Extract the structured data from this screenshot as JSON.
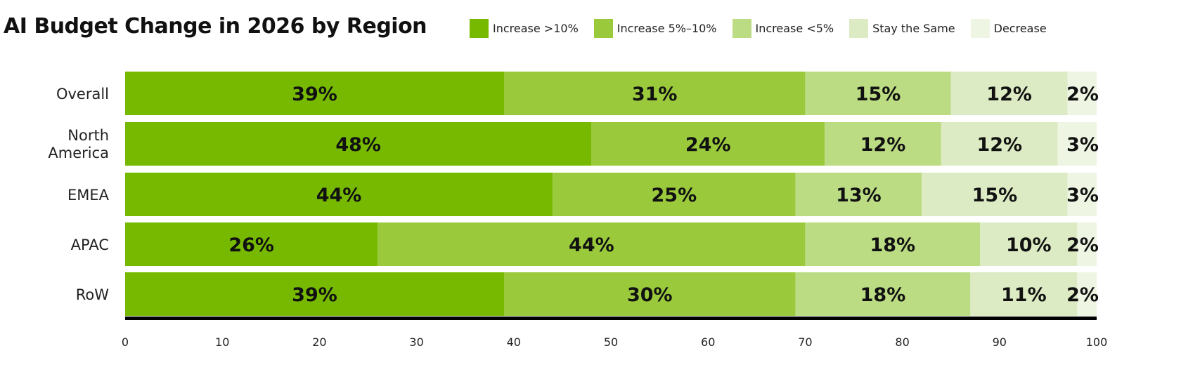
{
  "chart_data": {
    "type": "bar",
    "orientation": "horizontal",
    "stacked": true,
    "title": "AI Budget Change in 2026 by Region",
    "categories": [
      "Overall",
      "North America",
      "EMEA",
      "APAC",
      "RoW"
    ],
    "series": [
      {
        "name": "Increase >10%",
        "color": "#76b900",
        "values": [
          39,
          48,
          44,
          26,
          39
        ]
      },
      {
        "name": "Increase 5%–10%",
        "color": "#9aca3c",
        "values": [
          31,
          24,
          25,
          44,
          30
        ]
      },
      {
        "name": "Increase <5%",
        "color": "#bcdc84",
        "values": [
          15,
          12,
          13,
          18,
          18
        ]
      },
      {
        "name": "Stay the Same",
        "color": "#dcebc3",
        "values": [
          12,
          12,
          15,
          10,
          11
        ]
      },
      {
        "name": "Decrease",
        "color": "#eef5e3",
        "values": [
          2,
          3,
          3,
          2,
          2
        ]
      }
    ],
    "xlim": [
      0,
      100
    ],
    "xticks": [
      "0",
      "10",
      "20",
      "30",
      "40",
      "50",
      "60",
      "70",
      "80",
      "90",
      "100"
    ],
    "legend": "top-right",
    "grid": false,
    "xlabel": "",
    "ylabel": ""
  }
}
